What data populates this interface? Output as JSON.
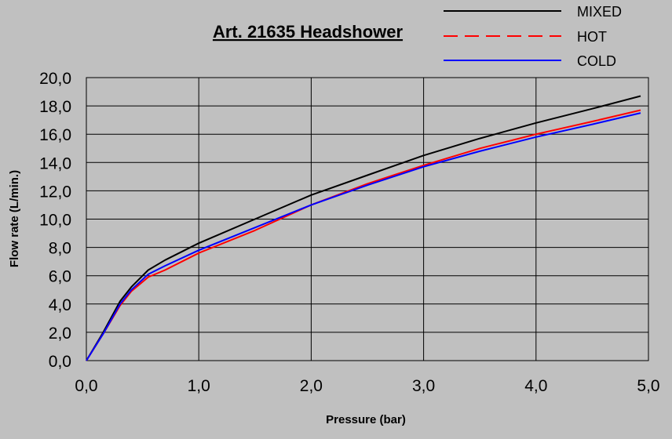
{
  "chart_data": {
    "type": "line",
    "title": "Art. 21635 Headshower",
    "xlabel": "Pressure (bar)",
    "ylabel": "Flow rate (L/min.)",
    "xlim": [
      0,
      5
    ],
    "ylim": [
      0,
      20
    ],
    "x_ticks": [
      "0,0",
      "1,0",
      "2,0",
      "3,0",
      "4,0",
      "5,0"
    ],
    "y_ticks": [
      "0,0",
      "2,0",
      "4,0",
      "6,0",
      "8,0",
      "10,0",
      "12,0",
      "14,0",
      "16,0",
      "18,0",
      "20,0"
    ],
    "grid": true,
    "legend_position": "top-right",
    "series": [
      {
        "name": "MIXED",
        "color": "#000000",
        "style": "solid",
        "points": [
          [
            0,
            0
          ],
          [
            0.15,
            2.0
          ],
          [
            0.3,
            4.2
          ],
          [
            0.4,
            5.2
          ],
          [
            0.55,
            6.4
          ],
          [
            0.7,
            7.1
          ],
          [
            1.0,
            8.3
          ],
          [
            1.5,
            10.0
          ],
          [
            2.0,
            11.7
          ],
          [
            2.5,
            13.1
          ],
          [
            3.0,
            14.5
          ],
          [
            3.5,
            15.7
          ],
          [
            4.0,
            16.8
          ],
          [
            4.5,
            17.8
          ],
          [
            4.93,
            18.7
          ]
        ]
      },
      {
        "name": "HOT",
        "color": "#ff0000",
        "style": "dashed",
        "points": [
          [
            0,
            0
          ],
          [
            0.15,
            1.9
          ],
          [
            0.3,
            3.9
          ],
          [
            0.4,
            4.9
          ],
          [
            0.55,
            5.9
          ],
          [
            0.7,
            6.4
          ],
          [
            1.0,
            7.6
          ],
          [
            1.5,
            9.2
          ],
          [
            2.0,
            11.0
          ],
          [
            2.5,
            12.5
          ],
          [
            3.0,
            13.8
          ],
          [
            3.5,
            15.0
          ],
          [
            4.0,
            16.0
          ],
          [
            4.5,
            16.9
          ],
          [
            4.93,
            17.7
          ]
        ]
      },
      {
        "name": "COLD",
        "color": "#0000ff",
        "style": "solid",
        "points": [
          [
            0,
            0
          ],
          [
            0.15,
            1.9
          ],
          [
            0.3,
            4.0
          ],
          [
            0.4,
            5.0
          ],
          [
            0.55,
            6.1
          ],
          [
            0.7,
            6.7
          ],
          [
            1.0,
            7.8
          ],
          [
            1.5,
            9.4
          ],
          [
            2.0,
            11.0
          ],
          [
            2.5,
            12.4
          ],
          [
            3.0,
            13.7
          ],
          [
            3.5,
            14.8
          ],
          [
            4.0,
            15.8
          ],
          [
            4.5,
            16.7
          ],
          [
            4.93,
            17.5
          ]
        ]
      }
    ]
  }
}
